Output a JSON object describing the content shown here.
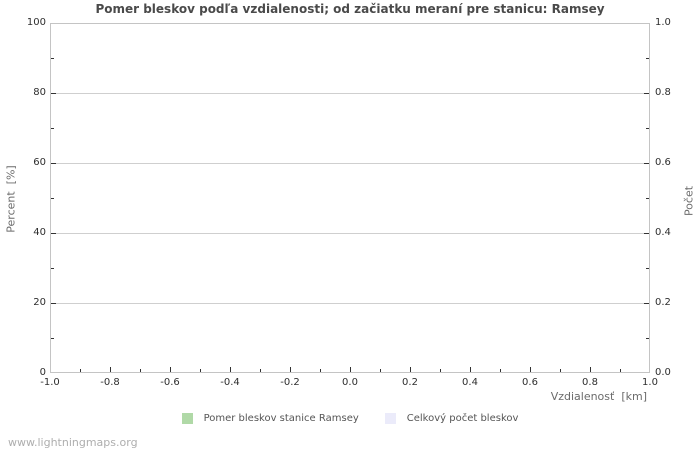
{
  "page": {
    "watermark": "www.lightningmaps.org"
  },
  "chart_data": {
    "type": "bar",
    "title": "Pomer bleskov podľa vzdialenosti; od začiatku meraní pre stanicu: Ramsey",
    "x_axis": {
      "label": "Vzdialenosť  [km]",
      "range": [
        -1.0,
        1.0
      ],
      "tick_labels": [
        "-1.0",
        "-0.8",
        "-0.6",
        "-0.4",
        "-0.2",
        "0.0",
        "0.2",
        "0.4",
        "0.6",
        "0.8",
        "1.0"
      ],
      "minor_tick_step": 0.1
    },
    "y_axis_left": {
      "label": "Percent  [%]",
      "range": [
        0,
        100
      ],
      "tick_labels": [
        "0",
        "20",
        "40",
        "60",
        "80",
        "100"
      ],
      "minor_tick_step": 10
    },
    "y_axis_right": {
      "label": "Počet",
      "range": [
        0.0,
        1.0
      ],
      "tick_labels": [
        "0.0",
        "0.2",
        "0.4",
        "0.6",
        "0.8",
        "1.0"
      ],
      "minor_tick_step": 0.1
    },
    "grid": "horizontal-major-only",
    "legend": {
      "position": "bottom-center",
      "items": [
        {
          "label": "Pomer bleskov stanice Ramsey",
          "color": "#b0d9a7"
        },
        {
          "label": "Celkový počet bleskov",
          "color": "#ebebfa"
        }
      ]
    },
    "series": [
      {
        "name": "Pomer bleskov stanice Ramsey",
        "color": "#b0d9a7",
        "values": []
      },
      {
        "name": "Celkový počet bleskov",
        "color": "#ebebfa",
        "values": []
      }
    ],
    "colors": {
      "background": "#ffffff",
      "frame": "#c4c4c4",
      "grid": "#cfcfcf",
      "tick": "#333333",
      "title_text": "#4a4a4a",
      "tick_label_text": "#2e2e2e",
      "axis_title_text": "#6b6b6b",
      "legend_text": "#555555",
      "watermark_text": "#aeaeae"
    }
  }
}
